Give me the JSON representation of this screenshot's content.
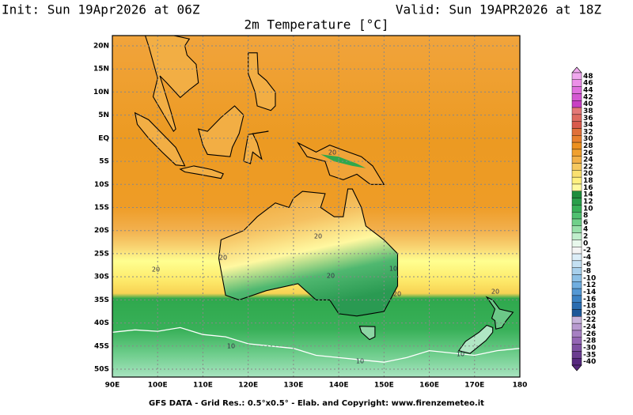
{
  "header": {
    "init": "Init: Sun 19Apr2026 at 06Z",
    "valid": "Valid: Sun 19APR2026 at 18Z",
    "title": "2m Temperature [°C]"
  },
  "map": {
    "lat_labels": [
      "20N",
      "15N",
      "10N",
      "5N",
      "EQ",
      "5S",
      "10S",
      "15S",
      "20S",
      "25S",
      "30S",
      "35S",
      "40S",
      "45S",
      "50S"
    ],
    "lon_labels": [
      "90E",
      "100E",
      "110E",
      "120E",
      "130E",
      "140E",
      "150E",
      "160E",
      "170E",
      "180"
    ],
    "contour_labels": [
      "20",
      "20",
      "20",
      "20",
      "20",
      "20",
      "20",
      "10",
      "10",
      "10",
      "10"
    ]
  },
  "colorbar": {
    "levels": [
      48,
      46,
      44,
      42,
      40,
      38,
      36,
      34,
      32,
      30,
      28,
      26,
      24,
      22,
      20,
      18,
      16,
      14,
      12,
      10,
      8,
      6,
      4,
      2,
      0,
      -2,
      -4,
      -6,
      -8,
      -10,
      -12,
      -14,
      -16,
      -18,
      -20,
      -22,
      -24,
      -26,
      -28,
      -30,
      -35,
      -40
    ],
    "colors": [
      "#f0a8ee",
      "#ec90e8",
      "#e070de",
      "#d458d2",
      "#c840c4",
      "#e47878",
      "#de6a60",
      "#d85a4c",
      "#e0703a",
      "#e8802e",
      "#ec9020",
      "#f0a030",
      "#f2b048",
      "#f6c860",
      "#fae070",
      "#fff080",
      "#fffaa0",
      "#1e8c3c",
      "#2a9e4a",
      "#38b058",
      "#50c070",
      "#70d08a",
      "#98e0aa",
      "#c0eecc",
      "#e8f8ec",
      "#f4f4f4",
      "#dceef8",
      "#c4e0f2",
      "#a8d0ec",
      "#8cc0e6",
      "#70aee0",
      "#5498d4",
      "#3c82c4",
      "#2a6cb0",
      "#1e5898",
      "#c8b4dc",
      "#b89ad0",
      "#a680c2",
      "#9466b4",
      "#7e50a2",
      "#6a3c90",
      "#56287e"
    ]
  },
  "footer": "GFS DATA - Grid Res.: 0.5°x0.5° - Elab. and Copyright: www.firenzemeteo.it"
}
